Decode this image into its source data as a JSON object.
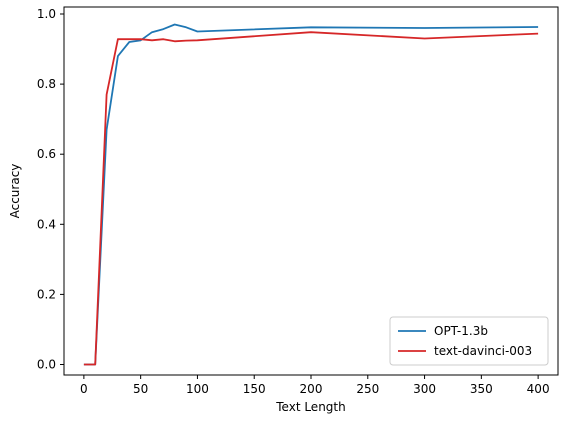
{
  "chart_data": {
    "type": "line",
    "title": "",
    "xlabel": "Text Length",
    "ylabel": "Accuracy",
    "xlim": [
      -17.5,
      417.5
    ],
    "ylim": [
      -0.03,
      1.02
    ],
    "xticks": [
      0,
      50,
      100,
      150,
      200,
      250,
      300,
      350,
      400
    ],
    "yticks": [
      0.0,
      0.2,
      0.4,
      0.6,
      0.8,
      1.0
    ],
    "xtick_labels": [
      "0",
      "50",
      "100",
      "150",
      "200",
      "250",
      "300",
      "350",
      "400"
    ],
    "ytick_labels": [
      "0.0",
      "0.2",
      "0.4",
      "0.6",
      "0.8",
      "1.0"
    ],
    "grid": false,
    "legend_position": "lower-right",
    "series": [
      {
        "name": "OPT-1.3b",
        "color": "#1f77b4",
        "x": [
          0,
          10,
          20,
          30,
          40,
          50,
          60,
          70,
          80,
          90,
          100,
          200,
          300,
          400
        ],
        "y": [
          0.0,
          0.0,
          0.67,
          0.88,
          0.92,
          0.925,
          0.948,
          0.957,
          0.97,
          0.962,
          0.95,
          0.962,
          0.96,
          0.963
        ]
      },
      {
        "name": "text-davinci-003",
        "color": "#d62728",
        "x": [
          0,
          10,
          20,
          30,
          40,
          50,
          60,
          70,
          80,
          90,
          100,
          200,
          300,
          400
        ],
        "y": [
          0.0,
          0.0,
          0.77,
          0.928,
          0.928,
          0.928,
          0.925,
          0.928,
          0.922,
          0.924,
          0.925,
          0.948,
          0.93,
          0.944
        ]
      }
    ]
  }
}
